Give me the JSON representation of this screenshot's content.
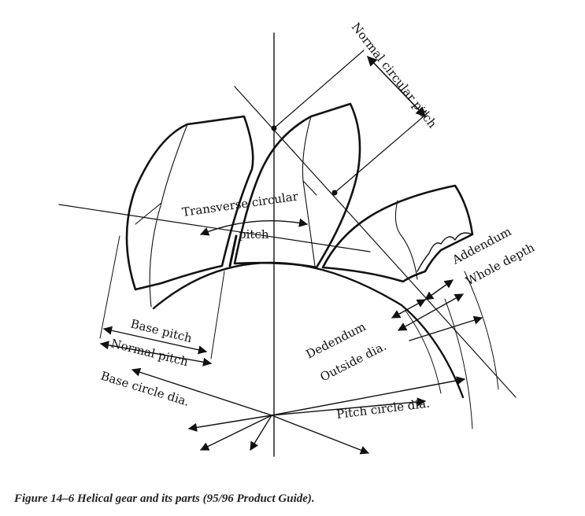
{
  "labels": {
    "normal_circular_pitch": "Normal circular pitch",
    "transverse_circular": "Transverse circular",
    "pitch": "pitch",
    "addendum": "Addendum",
    "whole_depth": "Whole depth",
    "dedendum": "Dedendum",
    "outside_dia": "Outside dia.",
    "base_pitch": "Base pitch",
    "normal_pitch": "Normal pitch",
    "base_circle_dia": "Base circle dia.",
    "pitch_circle_dia": "Pitch circle dia."
  },
  "caption": "Figure 14–6  Helical gear and its parts (95/96 Product Guide)."
}
